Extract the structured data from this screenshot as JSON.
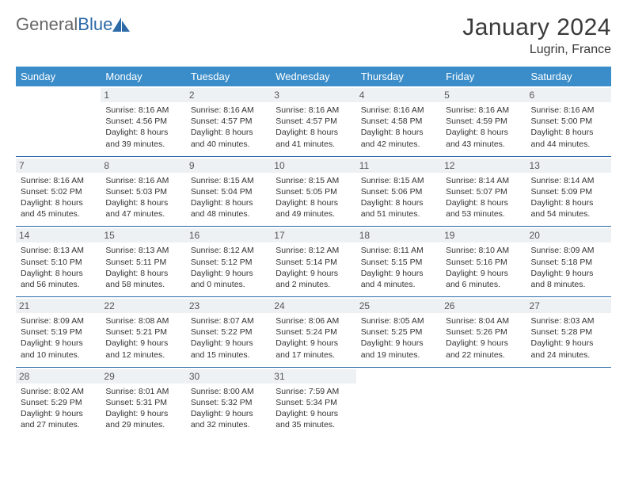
{
  "logo": {
    "word1": "General",
    "word2": "Blue"
  },
  "title": "January 2024",
  "location": "Lugrin, France",
  "colors": {
    "header_bg": "#3a8dc9",
    "header_text": "#ffffff",
    "border": "#2d6aa8",
    "daynum_bg": "#eef1f3",
    "daynum_text": "#555555",
    "body_text": "#333333",
    "title_text": "#3a3a3a"
  },
  "weekdays": [
    "Sunday",
    "Monday",
    "Tuesday",
    "Wednesday",
    "Thursday",
    "Friday",
    "Saturday"
  ],
  "weeks": [
    [
      null,
      {
        "n": "1",
        "sunrise": "Sunrise: 8:16 AM",
        "sunset": "Sunset: 4:56 PM",
        "d1": "Daylight: 8 hours",
        "d2": "and 39 minutes."
      },
      {
        "n": "2",
        "sunrise": "Sunrise: 8:16 AM",
        "sunset": "Sunset: 4:57 PM",
        "d1": "Daylight: 8 hours",
        "d2": "and 40 minutes."
      },
      {
        "n": "3",
        "sunrise": "Sunrise: 8:16 AM",
        "sunset": "Sunset: 4:57 PM",
        "d1": "Daylight: 8 hours",
        "d2": "and 41 minutes."
      },
      {
        "n": "4",
        "sunrise": "Sunrise: 8:16 AM",
        "sunset": "Sunset: 4:58 PM",
        "d1": "Daylight: 8 hours",
        "d2": "and 42 minutes."
      },
      {
        "n": "5",
        "sunrise": "Sunrise: 8:16 AM",
        "sunset": "Sunset: 4:59 PM",
        "d1": "Daylight: 8 hours",
        "d2": "and 43 minutes."
      },
      {
        "n": "6",
        "sunrise": "Sunrise: 8:16 AM",
        "sunset": "Sunset: 5:00 PM",
        "d1": "Daylight: 8 hours",
        "d2": "and 44 minutes."
      }
    ],
    [
      {
        "n": "7",
        "sunrise": "Sunrise: 8:16 AM",
        "sunset": "Sunset: 5:02 PM",
        "d1": "Daylight: 8 hours",
        "d2": "and 45 minutes."
      },
      {
        "n": "8",
        "sunrise": "Sunrise: 8:16 AM",
        "sunset": "Sunset: 5:03 PM",
        "d1": "Daylight: 8 hours",
        "d2": "and 47 minutes."
      },
      {
        "n": "9",
        "sunrise": "Sunrise: 8:15 AM",
        "sunset": "Sunset: 5:04 PM",
        "d1": "Daylight: 8 hours",
        "d2": "and 48 minutes."
      },
      {
        "n": "10",
        "sunrise": "Sunrise: 8:15 AM",
        "sunset": "Sunset: 5:05 PM",
        "d1": "Daylight: 8 hours",
        "d2": "and 49 minutes."
      },
      {
        "n": "11",
        "sunrise": "Sunrise: 8:15 AM",
        "sunset": "Sunset: 5:06 PM",
        "d1": "Daylight: 8 hours",
        "d2": "and 51 minutes."
      },
      {
        "n": "12",
        "sunrise": "Sunrise: 8:14 AM",
        "sunset": "Sunset: 5:07 PM",
        "d1": "Daylight: 8 hours",
        "d2": "and 53 minutes."
      },
      {
        "n": "13",
        "sunrise": "Sunrise: 8:14 AM",
        "sunset": "Sunset: 5:09 PM",
        "d1": "Daylight: 8 hours",
        "d2": "and 54 minutes."
      }
    ],
    [
      {
        "n": "14",
        "sunrise": "Sunrise: 8:13 AM",
        "sunset": "Sunset: 5:10 PM",
        "d1": "Daylight: 8 hours",
        "d2": "and 56 minutes."
      },
      {
        "n": "15",
        "sunrise": "Sunrise: 8:13 AM",
        "sunset": "Sunset: 5:11 PM",
        "d1": "Daylight: 8 hours",
        "d2": "and 58 minutes."
      },
      {
        "n": "16",
        "sunrise": "Sunrise: 8:12 AM",
        "sunset": "Sunset: 5:12 PM",
        "d1": "Daylight: 9 hours",
        "d2": "and 0 minutes."
      },
      {
        "n": "17",
        "sunrise": "Sunrise: 8:12 AM",
        "sunset": "Sunset: 5:14 PM",
        "d1": "Daylight: 9 hours",
        "d2": "and 2 minutes."
      },
      {
        "n": "18",
        "sunrise": "Sunrise: 8:11 AM",
        "sunset": "Sunset: 5:15 PM",
        "d1": "Daylight: 9 hours",
        "d2": "and 4 minutes."
      },
      {
        "n": "19",
        "sunrise": "Sunrise: 8:10 AM",
        "sunset": "Sunset: 5:16 PM",
        "d1": "Daylight: 9 hours",
        "d2": "and 6 minutes."
      },
      {
        "n": "20",
        "sunrise": "Sunrise: 8:09 AM",
        "sunset": "Sunset: 5:18 PM",
        "d1": "Daylight: 9 hours",
        "d2": "and 8 minutes."
      }
    ],
    [
      {
        "n": "21",
        "sunrise": "Sunrise: 8:09 AM",
        "sunset": "Sunset: 5:19 PM",
        "d1": "Daylight: 9 hours",
        "d2": "and 10 minutes."
      },
      {
        "n": "22",
        "sunrise": "Sunrise: 8:08 AM",
        "sunset": "Sunset: 5:21 PM",
        "d1": "Daylight: 9 hours",
        "d2": "and 12 minutes."
      },
      {
        "n": "23",
        "sunrise": "Sunrise: 8:07 AM",
        "sunset": "Sunset: 5:22 PM",
        "d1": "Daylight: 9 hours",
        "d2": "and 15 minutes."
      },
      {
        "n": "24",
        "sunrise": "Sunrise: 8:06 AM",
        "sunset": "Sunset: 5:24 PM",
        "d1": "Daylight: 9 hours",
        "d2": "and 17 minutes."
      },
      {
        "n": "25",
        "sunrise": "Sunrise: 8:05 AM",
        "sunset": "Sunset: 5:25 PM",
        "d1": "Daylight: 9 hours",
        "d2": "and 19 minutes."
      },
      {
        "n": "26",
        "sunrise": "Sunrise: 8:04 AM",
        "sunset": "Sunset: 5:26 PM",
        "d1": "Daylight: 9 hours",
        "d2": "and 22 minutes."
      },
      {
        "n": "27",
        "sunrise": "Sunrise: 8:03 AM",
        "sunset": "Sunset: 5:28 PM",
        "d1": "Daylight: 9 hours",
        "d2": "and 24 minutes."
      }
    ],
    [
      {
        "n": "28",
        "sunrise": "Sunrise: 8:02 AM",
        "sunset": "Sunset: 5:29 PM",
        "d1": "Daylight: 9 hours",
        "d2": "and 27 minutes."
      },
      {
        "n": "29",
        "sunrise": "Sunrise: 8:01 AM",
        "sunset": "Sunset: 5:31 PM",
        "d1": "Daylight: 9 hours",
        "d2": "and 29 minutes."
      },
      {
        "n": "30",
        "sunrise": "Sunrise: 8:00 AM",
        "sunset": "Sunset: 5:32 PM",
        "d1": "Daylight: 9 hours",
        "d2": "and 32 minutes."
      },
      {
        "n": "31",
        "sunrise": "Sunrise: 7:59 AM",
        "sunset": "Sunset: 5:34 PM",
        "d1": "Daylight: 9 hours",
        "d2": "and 35 minutes."
      },
      null,
      null,
      null
    ]
  ]
}
